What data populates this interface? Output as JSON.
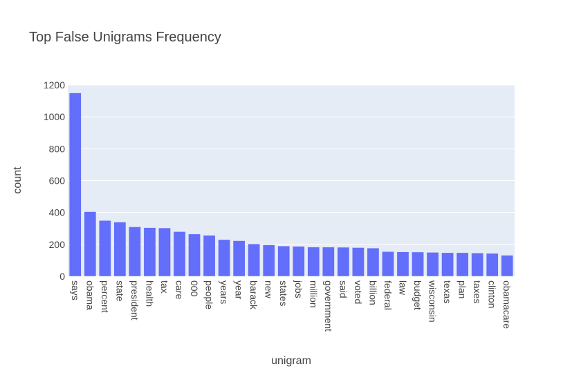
{
  "chart_data": {
    "type": "bar",
    "title": "Top False Unigrams Frequency",
    "xlabel": "unigram",
    "ylabel": "count",
    "ylim": [
      0,
      1200
    ],
    "yticks": [
      0,
      200,
      400,
      600,
      800,
      1000,
      1200
    ],
    "grid": true,
    "categories": [
      "says",
      "obama",
      "percent",
      "state",
      "president",
      "health",
      "tax",
      "care",
      "000",
      "people",
      "years",
      "year",
      "barack",
      "new",
      "states",
      "jobs",
      "million",
      "government",
      "said",
      "voted",
      "billion",
      "federal",
      "law",
      "budget",
      "wisconsin",
      "texas",
      "plan",
      "taxes",
      "clinton",
      "obamacare"
    ],
    "values": [
      1150,
      405,
      350,
      340,
      310,
      305,
      303,
      280,
      265,
      257,
      230,
      223,
      203,
      197,
      190,
      188,
      183,
      183,
      182,
      180,
      177,
      155,
      153,
      152,
      150,
      148,
      148,
      146,
      144,
      132
    ],
    "colors": {
      "bar": "#636efa",
      "plot_bg": "#e5ecf6",
      "grid": "#ffffff",
      "text": "#444444"
    }
  }
}
